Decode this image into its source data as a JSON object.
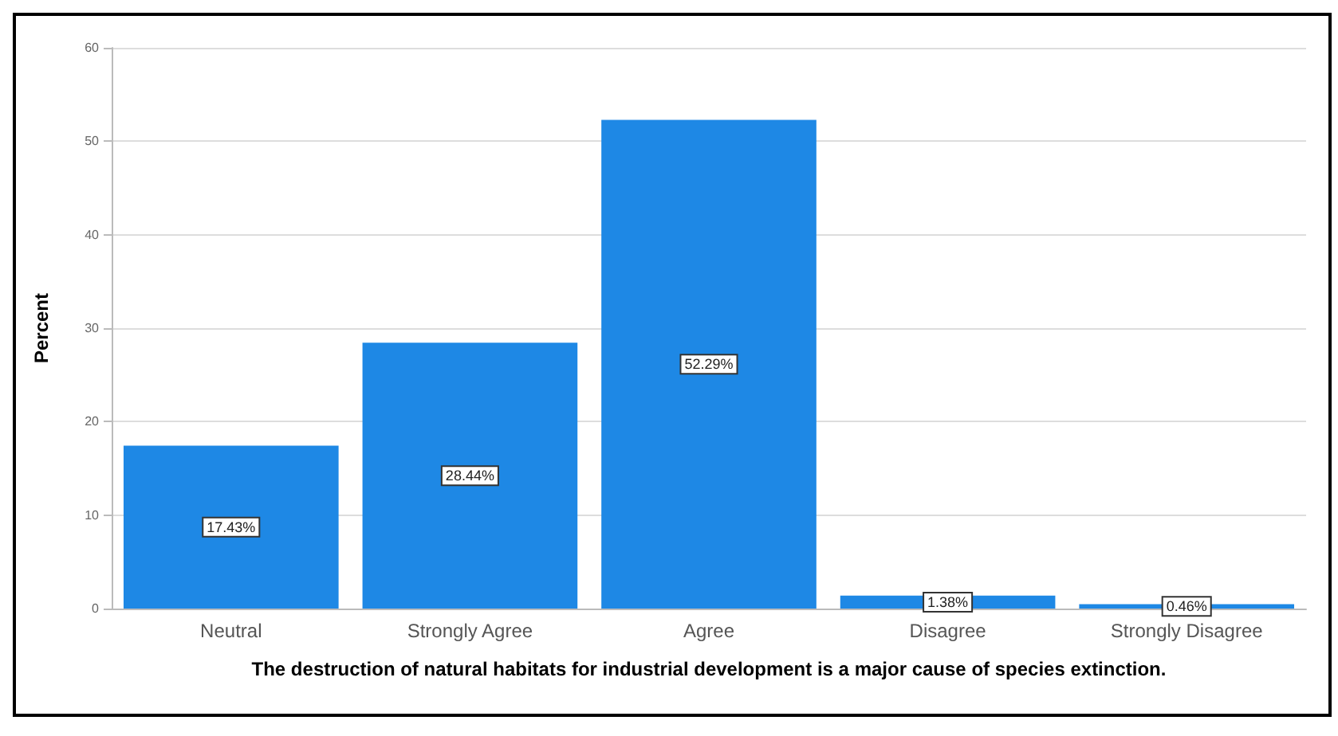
{
  "chart_data": {
    "type": "bar",
    "xlabel": "The destruction of natural habitats for industrial development is a major cause of species extinction.",
    "ylabel": "Percent",
    "categories": [
      "Neutral",
      "Strongly Agree",
      "Agree",
      "Disagree",
      "Strongly Disagree"
    ],
    "values": [
      17.43,
      28.44,
      52.29,
      1.38,
      0.46
    ],
    "value_labels": [
      "17.43%",
      "28.44%",
      "52.29%",
      "1.38%",
      "0.46%"
    ],
    "color": "#1e88e5",
    "ylim": [
      0,
      60
    ],
    "yticks": [
      0,
      10,
      20,
      30,
      40,
      50,
      60
    ],
    "grid": "y"
  }
}
